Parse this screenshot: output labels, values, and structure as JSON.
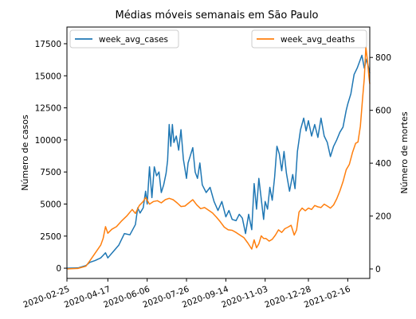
{
  "chart_data": {
    "type": "line",
    "title": "Médias móveis semanais em São Paulo",
    "ylabel_left": "Número de casos",
    "ylabel_right": "Número de mortes",
    "x_ticks": [
      "2020-02-25",
      "2020-04-17",
      "2020-06-06",
      "2020-07-26",
      "2020-09-14",
      "2020-11-03",
      "2020-12-28",
      "2021-02-16"
    ],
    "x_range": [
      "2020-02-25",
      "2021-03-16"
    ],
    "ylim_left": [
      -800,
      18800
    ],
    "yticks_left": [
      0,
      2500,
      5000,
      7500,
      10000,
      12500,
      15000,
      17500
    ],
    "ylim_right": [
      -36,
      915
    ],
    "yticks_right": [
      0,
      200,
      400,
      600,
      800
    ],
    "grid": false,
    "series": [
      {
        "name": "week_avg_cases",
        "axis": "left",
        "color": "#1f77b4",
        "legend_position": "upper left",
        "points": [
          [
            "2020-02-25",
            0
          ],
          [
            "2020-03-10",
            20
          ],
          [
            "2020-03-20",
            200
          ],
          [
            "2020-03-25",
            450
          ],
          [
            "2020-04-01",
            600
          ],
          [
            "2020-04-08",
            800
          ],
          [
            "2020-04-14",
            1200
          ],
          [
            "2020-04-17",
            800
          ],
          [
            "2020-04-24",
            1300
          ],
          [
            "2020-05-01",
            1800
          ],
          [
            "2020-05-08",
            2700
          ],
          [
            "2020-05-15",
            2600
          ],
          [
            "2020-05-22",
            3400
          ],
          [
            "2020-05-25",
            4700
          ],
          [
            "2020-05-28",
            4300
          ],
          [
            "2020-06-01",
            4700
          ],
          [
            "2020-06-04",
            6000
          ],
          [
            "2020-06-06",
            5000
          ],
          [
            "2020-06-09",
            7900
          ],
          [
            "2020-06-12",
            5500
          ],
          [
            "2020-06-15",
            7900
          ],
          [
            "2020-06-18",
            7200
          ],
          [
            "2020-06-21",
            7500
          ],
          [
            "2020-06-24",
            5900
          ],
          [
            "2020-06-27",
            6500
          ],
          [
            "2020-06-30",
            7400
          ],
          [
            "2020-07-02",
            8400
          ],
          [
            "2020-07-04",
            11200
          ],
          [
            "2020-07-06",
            9500
          ],
          [
            "2020-07-08",
            11200
          ],
          [
            "2020-07-10",
            9800
          ],
          [
            "2020-07-13",
            10300
          ],
          [
            "2020-07-16",
            9200
          ],
          [
            "2020-07-19",
            10800
          ],
          [
            "2020-07-22",
            8500
          ],
          [
            "2020-07-26",
            7000
          ],
          [
            "2020-07-28",
            8200
          ],
          [
            "2020-07-31",
            8800
          ],
          [
            "2020-08-03",
            9400
          ],
          [
            "2020-08-06",
            7500
          ],
          [
            "2020-08-09",
            7000
          ],
          [
            "2020-08-12",
            8200
          ],
          [
            "2020-08-15",
            6500
          ],
          [
            "2020-08-20",
            5900
          ],
          [
            "2020-08-25",
            6300
          ],
          [
            "2020-08-30",
            5200
          ],
          [
            "2020-09-04",
            4500
          ],
          [
            "2020-09-09",
            5200
          ],
          [
            "2020-09-14",
            4000
          ],
          [
            "2020-09-18",
            4500
          ],
          [
            "2020-09-22",
            3800
          ],
          [
            "2020-09-27",
            3700
          ],
          [
            "2020-10-01",
            4200
          ],
          [
            "2020-10-05",
            3900
          ],
          [
            "2020-10-09",
            2700
          ],
          [
            "2020-10-13",
            4200
          ],
          [
            "2020-10-17",
            3000
          ],
          [
            "2020-10-20",
            6600
          ],
          [
            "2020-10-23",
            4600
          ],
          [
            "2020-10-26",
            7000
          ],
          [
            "2020-10-29",
            5400
          ],
          [
            "2020-11-01",
            3800
          ],
          [
            "2020-11-03",
            5200
          ],
          [
            "2020-11-06",
            4600
          ],
          [
            "2020-11-09",
            6300
          ],
          [
            "2020-11-12",
            5300
          ],
          [
            "2020-11-15",
            7100
          ],
          [
            "2020-11-18",
            9500
          ],
          [
            "2020-11-21",
            8900
          ],
          [
            "2020-11-24",
            7600
          ],
          [
            "2020-11-27",
            9100
          ],
          [
            "2020-11-30",
            7400
          ],
          [
            "2020-12-04",
            6000
          ],
          [
            "2020-12-08",
            7300
          ],
          [
            "2020-12-11",
            6200
          ],
          [
            "2020-12-14",
            9100
          ],
          [
            "2020-12-18",
            10800
          ],
          [
            "2020-12-22",
            11700
          ],
          [
            "2020-12-25",
            10700
          ],
          [
            "2020-12-28",
            11500
          ],
          [
            "2021-01-01",
            10300
          ],
          [
            "2021-01-05",
            11200
          ],
          [
            "2021-01-09",
            10200
          ],
          [
            "2021-01-13",
            11700
          ],
          [
            "2021-01-17",
            10300
          ],
          [
            "2021-01-21",
            9800
          ],
          [
            "2021-01-25",
            8700
          ],
          [
            "2021-01-29",
            9500
          ],
          [
            "2021-02-02",
            10000
          ],
          [
            "2021-02-06",
            10600
          ],
          [
            "2021-02-10",
            11000
          ],
          [
            "2021-02-14",
            12300
          ],
          [
            "2021-02-16",
            12800
          ],
          [
            "2021-02-20",
            13600
          ],
          [
            "2021-02-24",
            15100
          ],
          [
            "2021-02-28",
            15600
          ],
          [
            "2021-03-03",
            16100
          ],
          [
            "2021-03-06",
            16600
          ],
          [
            "2021-03-09",
            15600
          ],
          [
            "2021-03-12",
            16300
          ],
          [
            "2021-03-16",
            15200
          ]
        ]
      },
      {
        "name": "week_avg_deaths",
        "axis": "right",
        "color": "#ff7f0e",
        "legend_position": "upper right",
        "points": [
          [
            "2020-02-25",
            0
          ],
          [
            "2020-03-10",
            2
          ],
          [
            "2020-03-20",
            10
          ],
          [
            "2020-03-25",
            30
          ],
          [
            "2020-04-01",
            60
          ],
          [
            "2020-04-08",
            90
          ],
          [
            "2020-04-11",
            115
          ],
          [
            "2020-04-14",
            160
          ],
          [
            "2020-04-17",
            135
          ],
          [
            "2020-04-22",
            150
          ],
          [
            "2020-04-28",
            160
          ],
          [
            "2020-05-04",
            180
          ],
          [
            "2020-05-11",
            200
          ],
          [
            "2020-05-18",
            225
          ],
          [
            "2020-05-22",
            210
          ],
          [
            "2020-05-27",
            240
          ],
          [
            "2020-06-01",
            255
          ],
          [
            "2020-06-04",
            270
          ],
          [
            "2020-06-09",
            245
          ],
          [
            "2020-06-14",
            255
          ],
          [
            "2020-06-19",
            258
          ],
          [
            "2020-06-24",
            250
          ],
          [
            "2020-06-29",
            262
          ],
          [
            "2020-07-04",
            267
          ],
          [
            "2020-07-09",
            262
          ],
          [
            "2020-07-14",
            250
          ],
          [
            "2020-07-19",
            236
          ],
          [
            "2020-07-24",
            238
          ],
          [
            "2020-07-29",
            250
          ],
          [
            "2020-08-03",
            262
          ],
          [
            "2020-08-08",
            242
          ],
          [
            "2020-08-13",
            228
          ],
          [
            "2020-08-18",
            232
          ],
          [
            "2020-08-23",
            222
          ],
          [
            "2020-08-28",
            212
          ],
          [
            "2020-09-02",
            196
          ],
          [
            "2020-09-07",
            178
          ],
          [
            "2020-09-12",
            158
          ],
          [
            "2020-09-17",
            148
          ],
          [
            "2020-09-22",
            146
          ],
          [
            "2020-09-27",
            138
          ],
          [
            "2020-10-02",
            128
          ],
          [
            "2020-10-07",
            118
          ],
          [
            "2020-10-12",
            98
          ],
          [
            "2020-10-17",
            75
          ],
          [
            "2020-10-20",
            110
          ],
          [
            "2020-10-23",
            80
          ],
          [
            "2020-10-26",
            95
          ],
          [
            "2020-10-29",
            125
          ],
          [
            "2020-11-01",
            115
          ],
          [
            "2020-11-04",
            115
          ],
          [
            "2020-11-08",
            105
          ],
          [
            "2020-11-12",
            112
          ],
          [
            "2020-11-16",
            128
          ],
          [
            "2020-11-20",
            148
          ],
          [
            "2020-11-24",
            138
          ],
          [
            "2020-11-28",
            152
          ],
          [
            "2020-12-02",
            158
          ],
          [
            "2020-12-06",
            165
          ],
          [
            "2020-12-10",
            128
          ],
          [
            "2020-12-13",
            148
          ],
          [
            "2020-12-16",
            215
          ],
          [
            "2020-12-20",
            230
          ],
          [
            "2020-12-24",
            220
          ],
          [
            "2020-12-28",
            230
          ],
          [
            "2021-01-01",
            225
          ],
          [
            "2021-01-05",
            240
          ],
          [
            "2021-01-09",
            235
          ],
          [
            "2021-01-13",
            232
          ],
          [
            "2021-01-17",
            245
          ],
          [
            "2021-01-21",
            238
          ],
          [
            "2021-01-25",
            230
          ],
          [
            "2021-01-29",
            242
          ],
          [
            "2021-02-02",
            265
          ],
          [
            "2021-02-06",
            295
          ],
          [
            "2021-02-10",
            330
          ],
          [
            "2021-02-14",
            375
          ],
          [
            "2021-02-18",
            395
          ],
          [
            "2021-02-22",
            440
          ],
          [
            "2021-02-26",
            475
          ],
          [
            "2021-03-01",
            480
          ],
          [
            "2021-03-04",
            540
          ],
          [
            "2021-03-07",
            650
          ],
          [
            "2021-03-09",
            720
          ],
          [
            "2021-03-11",
            840
          ],
          [
            "2021-03-13",
            790
          ],
          [
            "2021-03-15",
            725
          ],
          [
            "2021-03-16",
            700
          ]
        ]
      }
    ]
  }
}
